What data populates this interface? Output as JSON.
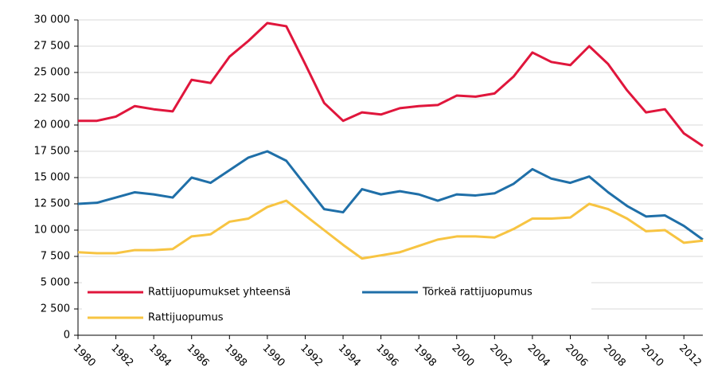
{
  "chart_data": {
    "type": "line",
    "x": [
      1980,
      1981,
      1982,
      1983,
      1984,
      1985,
      1986,
      1987,
      1988,
      1989,
      1990,
      1991,
      1992,
      1993,
      1994,
      1995,
      1996,
      1997,
      1998,
      1999,
      2000,
      2001,
      2002,
      2003,
      2004,
      2005,
      2006,
      2007,
      2008,
      2009,
      2010,
      2011,
      2012,
      2013
    ],
    "series": [
      {
        "name": "Rattijuopumukset yhteensä",
        "color": "#e0163c",
        "values": [
          20400,
          20400,
          20800,
          21800,
          21500,
          21300,
          24300,
          24000,
          26500,
          28000,
          29700,
          29400,
          25800,
          22100,
          20400,
          21200,
          21000,
          21600,
          21800,
          21900,
          22800,
          22700,
          23000,
          24600,
          26900,
          26000,
          25700,
          27500,
          25800,
          23300,
          21200,
          21500,
          19200,
          18000
        ]
      },
      {
        "name": "Törkeä rattijuopumus",
        "color": "#1f6fa8",
        "values": [
          12500,
          12600,
          13100,
          13600,
          13400,
          13100,
          15000,
          14500,
          15700,
          16900,
          17500,
          16600,
          14300,
          12000,
          11700,
          13900,
          13400,
          13700,
          13400,
          12800,
          13400,
          13300,
          13500,
          14400,
          15800,
          14900,
          14500,
          15100,
          13600,
          12300,
          11300,
          11400,
          10400,
          9100
        ]
      },
      {
        "name": "Rattijuopumus",
        "color": "#f7c442",
        "values": [
          7900,
          7800,
          7800,
          8100,
          8100,
          8200,
          9400,
          9600,
          10800,
          11100,
          12200,
          12800,
          11400,
          10000,
          8600,
          7300,
          7600,
          7900,
          8500,
          9100,
          9400,
          9400,
          9300,
          10100,
          11100,
          11100,
          11200,
          12500,
          12000,
          11100,
          9900,
          10000,
          8800,
          9000
        ]
      }
    ],
    "xlim": [
      1980,
      2013
    ],
    "xticks": [
      1980,
      1982,
      1984,
      1986,
      1988,
      1990,
      1992,
      1994,
      1996,
      1998,
      2000,
      2002,
      2004,
      2006,
      2008,
      2010,
      2012
    ],
    "ylim": [
      0,
      30000
    ],
    "yticks": [
      0,
      {
        "value": 2500,
        "label": "2 500"
      },
      {
        "value": 5000,
        "label": "5 000"
      },
      {
        "value": 7500,
        "label": "7 500"
      },
      {
        "value": 10000,
        "label": "10 000"
      },
      {
        "value": 12500,
        "label": "12 500"
      },
      {
        "value": 15000,
        "label": "15 000"
      },
      {
        "value": 17500,
        "label": "17 500"
      },
      {
        "value": 20000,
        "label": "20 000"
      },
      {
        "value": 22500,
        "label": "22 500"
      },
      {
        "value": 25000,
        "label": "25 000"
      },
      {
        "value": 27500,
        "label": "27 500"
      },
      {
        "value": 30000,
        "label": "30 000"
      }
    ],
    "grid": true
  }
}
